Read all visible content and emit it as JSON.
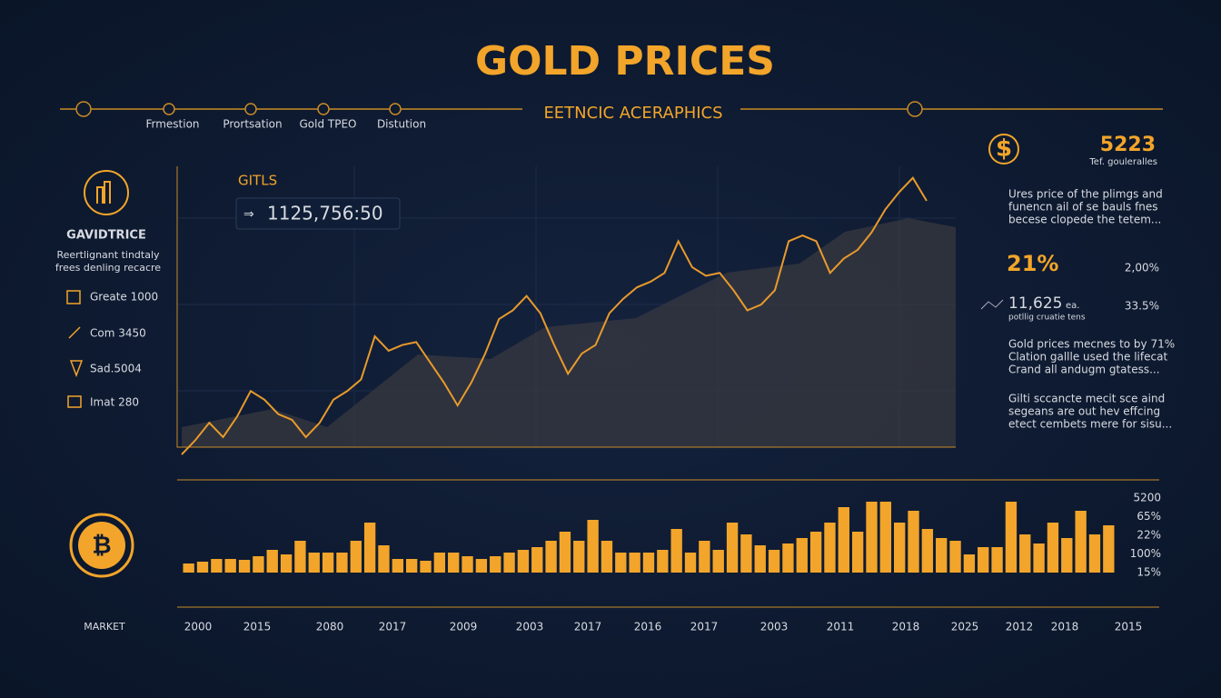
{
  "header": {
    "title": "GOLD PRICES",
    "subtitle": "EETNCIC ACERAPHICS",
    "nav": [
      "Frmestion",
      "Prortsation",
      "Gold TPEO",
      "Distution"
    ]
  },
  "sidebar": {
    "title": "GAVIDTRICE",
    "description": [
      "Reertlignant tindtaly",
      "frees denling recacre"
    ],
    "items": [
      "Greate 1000",
      "Com 3450",
      "Sad.5004",
      "Imat 280"
    ],
    "footer": "MARKET"
  },
  "panel": {
    "headline": "5223",
    "headline_note": "Tef. gouleralles",
    "note1": [
      "Ures price of the plimgs and",
      "funencn ail of se bauls fnes",
      "becese clopede the tetem..."
    ],
    "stat1": "21%",
    "stat1_side": "2,00%",
    "stat2": "11,625",
    "stat2_unit": "ea.",
    "stat2_note": "potllig cruatie tens",
    "stat2_side": "33.5%",
    "note2": [
      "Gold prices mecnes to by 71%",
      "Clation gallle used the lifecat",
      "Crand all andugm gtatess..."
    ],
    "note3": [
      "Gilti sccancte mecit sce aind",
      "segeans are out hev effcing",
      "etect cembets mere for sisu..."
    ]
  },
  "bottom_axis": {
    "labels": [
      "2000",
      "2015",
      "2080",
      "2017",
      "2009",
      "2003",
      "2017",
      "2016",
      "2017",
      "2003",
      "2011",
      "2018",
      "2025",
      "2012",
      "2018",
      "2015"
    ],
    "right_labels": [
      "5200",
      "65%",
      "22%",
      "100%",
      "15%"
    ]
  },
  "chart_data": [
    {
      "type": "line",
      "title": "GITLS",
      "value_label": "1125,756:50",
      "color": "#e89a2c",
      "ylim": [
        0,
        100
      ],
      "values": [
        0,
        5,
        11,
        6,
        13,
        22,
        19,
        14,
        12,
        6,
        11,
        19,
        22,
        26,
        41,
        36,
        38,
        39,
        32,
        25,
        17,
        25,
        35,
        47,
        50,
        55,
        49,
        38,
        28,
        35,
        38,
        49,
        54,
        58,
        60,
        63,
        74,
        65,
        62,
        63,
        57,
        50,
        52,
        57,
        74,
        76,
        74,
        63,
        68,
        71,
        77,
        85,
        91,
        96,
        88
      ]
    },
    {
      "type": "bar",
      "color": "#f2a52a",
      "ylim": [
        0,
        80
      ],
      "values": [
        10,
        12,
        15,
        15,
        14,
        18,
        25,
        20,
        35,
        22,
        22,
        22,
        35,
        55,
        30,
        15,
        15,
        13,
        22,
        22,
        18,
        15,
        18,
        22,
        25,
        28,
        35,
        45,
        35,
        58,
        35,
        22,
        22,
        22,
        25,
        48,
        22,
        35,
        25,
        55,
        42,
        30,
        25,
        32,
        38,
        45,
        55,
        72,
        45,
        78,
        78,
        55,
        68,
        48,
        38,
        35,
        20,
        28,
        28,
        78,
        42,
        32,
        55,
        38,
        68,
        42,
        52
      ]
    }
  ]
}
